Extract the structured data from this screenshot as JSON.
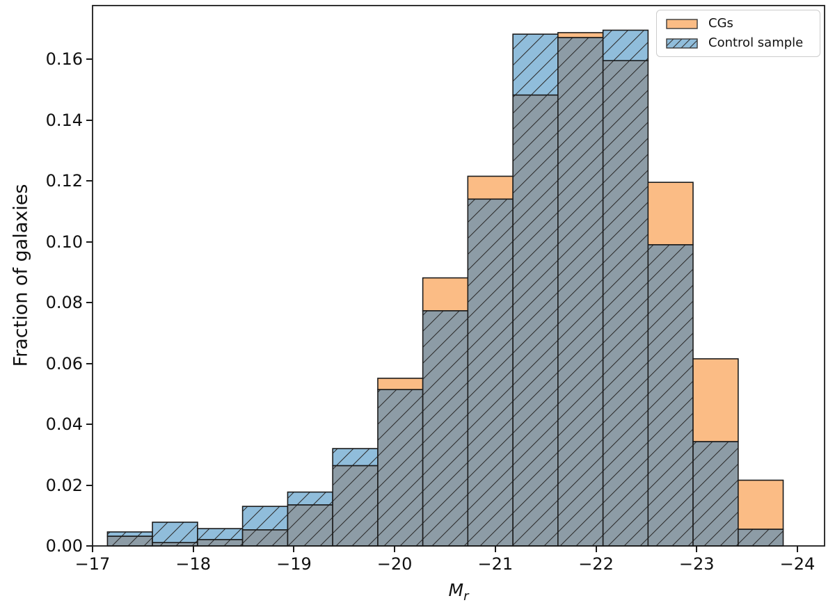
{
  "axes": {
    "ylabel": "Fraction of galaxies",
    "xlabel_main": "M",
    "xlabel_sub": "r",
    "x_ticks": [
      {
        "value": -17,
        "label": "−17"
      },
      {
        "value": -18,
        "label": "−18"
      },
      {
        "value": -19,
        "label": "−19"
      },
      {
        "value": -20,
        "label": "−20"
      },
      {
        "value": -21,
        "label": "−21"
      },
      {
        "value": -22,
        "label": "−22"
      },
      {
        "value": -23,
        "label": "−23"
      },
      {
        "value": -24,
        "label": "−24"
      }
    ],
    "y_ticks": [
      {
        "value": 0.0,
        "label": "0.00"
      },
      {
        "value": 0.02,
        "label": "0.02"
      },
      {
        "value": 0.04,
        "label": "0.04"
      },
      {
        "value": 0.06,
        "label": "0.06"
      },
      {
        "value": 0.08,
        "label": "0.08"
      },
      {
        "value": 0.1,
        "label": "0.10"
      },
      {
        "value": 0.12,
        "label": "0.12"
      },
      {
        "value": 0.14,
        "label": "0.14"
      },
      {
        "value": 0.16,
        "label": "0.16"
      }
    ]
  },
  "legend": {
    "position": "upper right",
    "items": [
      {
        "label": "CGs"
      },
      {
        "label": "Control sample"
      }
    ]
  },
  "chart_data": {
    "type": "bar",
    "subtype": "overlapping-histogram",
    "title": "",
    "xlabel": "M_r",
    "ylabel": "Fraction of galaxies",
    "xlim": [
      -17,
      -24.27
    ],
    "ylim": [
      0,
      0.1776
    ],
    "grid": false,
    "legend_position": "upper right",
    "x_axis_inverted": true,
    "bin_edges": [
      -17.148,
      -17.595,
      -18.043,
      -18.49,
      -18.938,
      -19.385,
      -19.833,
      -20.28,
      -20.727,
      -21.175,
      -21.622,
      -22.07,
      -22.517,
      -22.964,
      -23.412,
      -23.859
    ],
    "series": [
      {
        "name": "CGs",
        "color": "#fbbc85",
        "hatch": false,
        "values": [
          0.0032,
          0.0011,
          0.0021,
          0.0053,
          0.0135,
          0.0264,
          0.0551,
          0.0881,
          0.1215,
          0.1482,
          0.1687,
          0.1595,
          0.1195,
          0.0615,
          0.0216
        ]
      },
      {
        "name": "Control sample",
        "color": "#90bddb",
        "hatch": true,
        "values": [
          0.0046,
          0.0078,
          0.0057,
          0.013,
          0.0177,
          0.032,
          0.0514,
          0.0773,
          0.114,
          0.1682,
          0.1671,
          0.1695,
          0.099,
          0.0343,
          0.0055
        ]
      }
    ],
    "overlap_color": "#8d9ca6",
    "edge_color": "#1b1b1b",
    "hatch_color": "#2e2e2e"
  }
}
